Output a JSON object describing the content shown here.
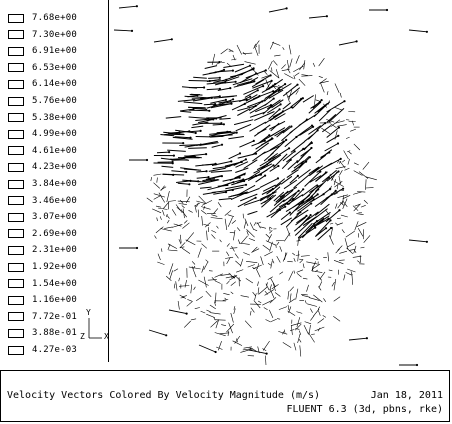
{
  "legend": {
    "values": [
      "7.68e+00",
      "7.30e+00",
      "6.91e+00",
      "6.53e+00",
      "6.14e+00",
      "5.76e+00",
      "5.38e+00",
      "4.99e+00",
      "4.61e+00",
      "4.23e+00",
      "3.84e+00",
      "3.46e+00",
      "3.07e+00",
      "2.69e+00",
      "2.31e+00",
      "1.92e+00",
      "1.54e+00",
      "1.16e+00",
      "7.72e-01",
      "3.88e-01",
      "4.27e-03"
    ]
  },
  "axes": {
    "y": "Y",
    "z": "Z",
    "x": "X"
  },
  "caption": {
    "title": "Velocity Vectors Colored By Velocity Magnitude (m/s)",
    "date": "Jan 18, 2011",
    "software": "FLUENT 6.3 (3d, pbns, rke)"
  }
}
